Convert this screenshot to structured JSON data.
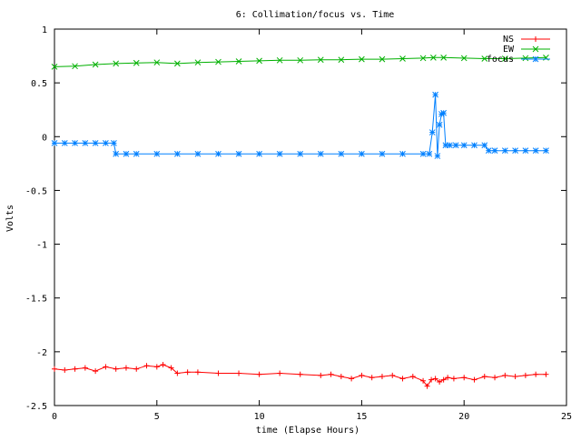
{
  "chart_data": {
    "type": "line",
    "title": "6: Collimation/focus vs. Time",
    "xlabel": "time (Elapse Hours)",
    "ylabel": "Volts",
    "xlim": [
      0,
      25
    ],
    "ylim": [
      -2.5,
      1
    ],
    "xticks": [
      0,
      5,
      10,
      15,
      20,
      25
    ],
    "xtick_labels": [
      "0",
      "5",
      "10",
      "15",
      "20",
      "25"
    ],
    "yticks": [
      -2.5,
      -2,
      -1.5,
      -1,
      -0.5,
      0,
      0.5,
      1
    ],
    "ytick_labels": [
      "-2.5",
      "-2",
      "-1.5",
      "-1",
      "-0.5",
      "0",
      "0.5",
      "1"
    ],
    "grid": false,
    "legend_position": "top-right",
    "series": [
      {
        "name": "NS",
        "color": "#ff0000",
        "marker": "plus",
        "x": [
          0,
          0.5,
          1,
          1.5,
          2,
          2.5,
          3,
          3.5,
          4,
          4.5,
          5,
          5.3,
          5.7,
          6,
          6.5,
          7,
          8,
          9,
          10,
          11,
          12,
          13,
          13.5,
          14,
          14.5,
          15,
          15.5,
          16,
          16.5,
          17,
          17.5,
          18,
          18.2,
          18.4,
          18.6,
          18.8,
          19,
          19.2,
          19.5,
          20,
          20.5,
          21,
          21.5,
          22,
          22.5,
          23,
          23.5,
          24
        ],
        "y": [
          -2.16,
          -2.17,
          -2.16,
          -2.15,
          -2.18,
          -2.14,
          -2.16,
          -2.15,
          -2.16,
          -2.13,
          -2.14,
          -2.12,
          -2.15,
          -2.2,
          -2.19,
          -2.19,
          -2.2,
          -2.2,
          -2.21,
          -2.2,
          -2.21,
          -2.22,
          -2.21,
          -2.23,
          -2.25,
          -2.22,
          -2.24,
          -2.23,
          -2.22,
          -2.25,
          -2.23,
          -2.27,
          -2.32,
          -2.26,
          -2.25,
          -2.28,
          -2.26,
          -2.24,
          -2.25,
          -2.24,
          -2.26,
          -2.23,
          -2.24,
          -2.22,
          -2.23,
          -2.22,
          -2.21,
          -2.21
        ]
      },
      {
        "name": "EW",
        "color": "#00b000",
        "marker": "x",
        "x": [
          0,
          1,
          2,
          3,
          4,
          5,
          6,
          7,
          8,
          9,
          10,
          11,
          12,
          13,
          14,
          15,
          16,
          17,
          18,
          18.5,
          19,
          20,
          21,
          22,
          23,
          24
        ],
        "y": [
          0.65,
          0.655,
          0.67,
          0.68,
          0.685,
          0.69,
          0.68,
          0.69,
          0.695,
          0.7,
          0.705,
          0.71,
          0.71,
          0.715,
          0.715,
          0.72,
          0.72,
          0.725,
          0.73,
          0.735,
          0.735,
          0.73,
          0.725,
          0.725,
          0.73,
          0.735
        ]
      },
      {
        "name": "focus",
        "color": "#0080ff",
        "marker": "star",
        "x": [
          0,
          0.5,
          1,
          1.5,
          2,
          2.5,
          2.9,
          3.0,
          3.5,
          4,
          5,
          6,
          7,
          8,
          9,
          10,
          11,
          12,
          13,
          14,
          15,
          16,
          17,
          18,
          18.3,
          18.45,
          18.6,
          18.7,
          18.8,
          18.9,
          19.0,
          19.1,
          19.3,
          19.6,
          20,
          20.5,
          21,
          21.2,
          21.5,
          22,
          22.5,
          23,
          23.5,
          24
        ],
        "y": [
          -0.06,
          -0.06,
          -0.06,
          -0.06,
          -0.06,
          -0.06,
          -0.06,
          -0.16,
          -0.16,
          -0.16,
          -0.16,
          -0.16,
          -0.16,
          -0.16,
          -0.16,
          -0.16,
          -0.16,
          -0.16,
          -0.16,
          -0.16,
          -0.16,
          -0.16,
          -0.16,
          -0.16,
          -0.16,
          0.04,
          0.39,
          -0.18,
          0.11,
          0.21,
          0.22,
          -0.08,
          -0.08,
          -0.08,
          -0.08,
          -0.08,
          -0.08,
          -0.13,
          -0.13,
          -0.13,
          -0.13,
          -0.13,
          -0.13,
          -0.13
        ]
      }
    ]
  }
}
